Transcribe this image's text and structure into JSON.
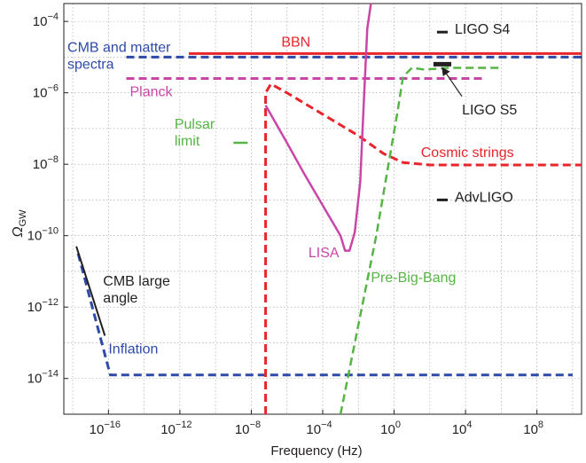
{
  "chart_data": {
    "type": "line",
    "xlabel": "Frequency (Hz)",
    "ylabel": "Ω",
    "ylabel_subscript": "GW",
    "x_scale": "log",
    "y_scale": "log",
    "xlim_log10": [
      -18.5,
      10.5
    ],
    "ylim_log10": [
      -15,
      -3.5
    ],
    "grid": true,
    "x_ticks": [
      {
        "value": -16,
        "label": "10",
        "exp": "−16"
      },
      {
        "value": -12,
        "label": "10",
        "exp": "−12"
      },
      {
        "value": -8,
        "label": "10",
        "exp": "−8"
      },
      {
        "value": -4,
        "label": "10",
        "exp": "−4"
      },
      {
        "value": 0,
        "label": "10",
        "exp": "0"
      },
      {
        "value": 4,
        "label": "10",
        "exp": "4"
      },
      {
        "value": 8,
        "label": "10",
        "exp": "8"
      }
    ],
    "y_ticks": [
      {
        "value": -14,
        "label": "10",
        "exp": "−14"
      },
      {
        "value": -12,
        "label": "10",
        "exp": "−12"
      },
      {
        "value": -10,
        "label": "10",
        "exp": "−10"
      },
      {
        "value": -8,
        "label": "10",
        "exp": "−8"
      },
      {
        "value": -6,
        "label": "10",
        "exp": "−6"
      },
      {
        "value": -4,
        "label": "10",
        "exp": "−4"
      }
    ],
    "series": [
      {
        "key": "bbn",
        "color": "#e8252a",
        "dash": "none",
        "width": 3,
        "points": [
          [
            -11.5,
            -4.9
          ],
          [
            10.5,
            -4.9
          ]
        ]
      },
      {
        "key": "cmb_matter",
        "color": "#2e4aa8",
        "dash": "9,5",
        "width": 3,
        "points": [
          [
            -15.0,
            -5.0
          ],
          [
            10.5,
            -5.0
          ]
        ]
      },
      {
        "key": "planck",
        "color": "#c946a8",
        "dash": "9,5",
        "width": 3,
        "points": [
          [
            -15.0,
            -5.6
          ],
          [
            5.0,
            -5.6
          ]
        ]
      },
      {
        "key": "inflation",
        "color": "#2e4aa8",
        "dash": "9,5",
        "width": 3,
        "points": [
          [
            -17.7,
            -10.5
          ],
          [
            -15.9,
            -13.9
          ],
          [
            10.0,
            -13.9
          ]
        ]
      },
      {
        "key": "cmb_large_angle",
        "color": "#231f20",
        "dash": "none",
        "width": 2,
        "points": [
          [
            -17.8,
            -10.3
          ],
          [
            -16.2,
            -12.8
          ]
        ]
      },
      {
        "key": "pulsar_limit",
        "color": "#56b444",
        "dash": "none",
        "width": 2.5,
        "points": [
          [
            -9.0,
            -7.4
          ],
          [
            -8.2,
            -7.4
          ]
        ]
      },
      {
        "key": "cosmic_strings",
        "color": "#e8252a",
        "dash": "9,5",
        "width": 3,
        "points": [
          [
            -7.2,
            -15.0
          ],
          [
            -7.2,
            -6.0
          ],
          [
            -6.9,
            -5.75
          ],
          [
            -6.0,
            -6.0
          ],
          [
            -4.0,
            -6.6
          ],
          [
            -2.0,
            -7.2
          ],
          [
            -0.6,
            -7.7
          ],
          [
            0.5,
            -7.95
          ],
          [
            2.0,
            -8.02
          ],
          [
            6.0,
            -8.02
          ],
          [
            10.5,
            -8.02
          ]
        ]
      },
      {
        "key": "lisa",
        "color": "#c946a8",
        "dash": "none",
        "width": 2.5,
        "points": [
          [
            -7.2,
            -6.35
          ],
          [
            -6.0,
            -7.4
          ],
          [
            -5.0,
            -8.3
          ],
          [
            -4.0,
            -9.15
          ],
          [
            -3.0,
            -10.0
          ],
          [
            -2.75,
            -10.42
          ],
          [
            -2.5,
            -10.42
          ],
          [
            -2.2,
            -9.9
          ],
          [
            -1.9,
            -8.5
          ],
          [
            -1.7,
            -6.3
          ],
          [
            -1.5,
            -4.2
          ],
          [
            -1.3,
            -3.5
          ]
        ]
      },
      {
        "key": "pre_big_bang",
        "color": "#56b444",
        "dash": "9,5",
        "width": 2.5,
        "points": [
          [
            -3.0,
            -15.0
          ],
          [
            -1.0,
            -10.0
          ],
          [
            0.2,
            -6.5
          ],
          [
            0.5,
            -5.55
          ],
          [
            1.0,
            -5.3
          ],
          [
            1.7,
            -5.35
          ],
          [
            3.0,
            -5.3
          ],
          [
            6.0,
            -5.3
          ]
        ]
      },
      {
        "key": "ligo_s4",
        "color": "#231f20",
        "dash": "none",
        "width": 3,
        "points": [
          [
            2.4,
            -4.3
          ],
          [
            3.0,
            -4.3
          ]
        ]
      },
      {
        "key": "ligo_s5",
        "color": "#231f20",
        "dash": "none",
        "width": 5,
        "points": [
          [
            2.2,
            -5.2
          ],
          [
            3.2,
            -5.2
          ]
        ]
      },
      {
        "key": "advligo",
        "color": "#231f20",
        "dash": "none",
        "width": 3,
        "points": [
          [
            2.4,
            -9.0
          ],
          [
            3.0,
            -9.0
          ]
        ]
      }
    ],
    "annotations": [
      {
        "key": "bbn",
        "lines": [
          "BBN"
        ],
        "color": "#e8252a",
        "x": -5.5,
        "y": -4.7,
        "anchor": "middle"
      },
      {
        "key": "ligo_s4",
        "lines": [
          "LIGO S4"
        ],
        "color": "#231f20",
        "x": 3.4,
        "y": -4.35,
        "anchor": "start"
      },
      {
        "key": "cmb_matter",
        "lines": [
          "CMB and matter",
          "spectra"
        ],
        "color": "#2e4aa8",
        "x": -18.3,
        "y": -4.85,
        "anchor": "start"
      },
      {
        "key": "planck",
        "lines": [
          "Planck"
        ],
        "color": "#c946a8",
        "x": -14.8,
        "y": -6.1,
        "anchor": "start"
      },
      {
        "key": "ligo_s5",
        "lines": [
          "LIGO S5"
        ],
        "color": "#231f20",
        "x": 3.8,
        "y": -6.6,
        "anchor": "start"
      },
      {
        "key": "pulsar_limit",
        "lines": [
          "Pulsar",
          "limit"
        ],
        "color": "#56b444",
        "x": -12.3,
        "y": -7.0,
        "anchor": "start"
      },
      {
        "key": "cosmic_strings",
        "lines": [
          "Cosmic strings"
        ],
        "color": "#e8252a",
        "x": 1.5,
        "y": -7.8,
        "anchor": "start"
      },
      {
        "key": "advligo",
        "lines": [
          "AdvLIGO"
        ],
        "color": "#231f20",
        "x": 3.4,
        "y": -9.05,
        "anchor": "start"
      },
      {
        "key": "lisa",
        "lines": [
          "LISA"
        ],
        "color": "#c946a8",
        "x": -4.8,
        "y": -10.6,
        "anchor": "start"
      },
      {
        "key": "pre_big_bang",
        "lines": [
          "Pre-Big-Bang"
        ],
        "color": "#56b444",
        "x": -1.3,
        "y": -11.3,
        "anchor": "start"
      },
      {
        "key": "cmb_large_angle",
        "lines": [
          "CMB large",
          "angle"
        ],
        "color": "#231f20",
        "x": -16.3,
        "y": -11.4,
        "anchor": "start"
      },
      {
        "key": "inflation",
        "lines": [
          "Inflation"
        ],
        "color": "#2e4aa8",
        "x": -16.0,
        "y": -13.3,
        "anchor": "start"
      }
    ],
    "arrow": {
      "key": "ligo_s5_pointer",
      "color": "#231f20",
      "from": [
        3.8,
        -6.1
      ],
      "to": [
        2.7,
        -5.3
      ]
    }
  }
}
